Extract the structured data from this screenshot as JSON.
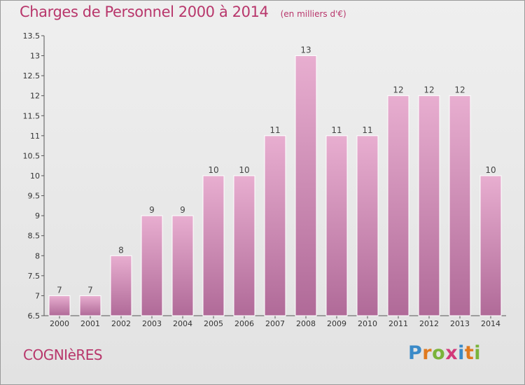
{
  "header": {
    "title": "Charges de Personnel 2000 à 2014",
    "unit": "(en milliers d'€)"
  },
  "footer": {
    "place": "COGNIèRES",
    "logo": "Proxiti"
  },
  "colors": {
    "accent": "#b8366b",
    "bar_top": "#e8aed0",
    "bar_bottom": "#b06a98"
  },
  "chart_data": {
    "type": "bar",
    "categories": [
      "2000",
      "2001",
      "2002",
      "2003",
      "2004",
      "2005",
      "2006",
      "2007",
      "2008",
      "2009",
      "2010",
      "2011",
      "2012",
      "2013",
      "2014"
    ],
    "values": [
      7,
      7,
      8,
      9,
      9,
      10,
      10,
      11,
      13,
      11,
      11,
      12,
      12,
      12,
      10
    ],
    "labels": [
      "7",
      "7",
      "8",
      "9",
      "9",
      "10",
      "10",
      "11",
      "13",
      "11",
      "11",
      "12",
      "12",
      "12",
      "10"
    ],
    "title": "Charges de Personnel 2000 à 2014",
    "xlabel": "",
    "ylabel": "",
    "ylim": [
      6.5,
      13.5
    ],
    "yticks": [
      6.5,
      7,
      7.5,
      8,
      8.5,
      9,
      9.5,
      10,
      10.5,
      11,
      11.5,
      12,
      12.5,
      13,
      13.5
    ],
    "ytick_labels": [
      "6.5",
      "7",
      "7.5",
      "8",
      "8.5",
      "9",
      "9.5",
      "10",
      "10.5",
      "11",
      "11.5",
      "12",
      "12.5",
      "13",
      "13.5"
    ],
    "grid": false,
    "legend": "none"
  }
}
